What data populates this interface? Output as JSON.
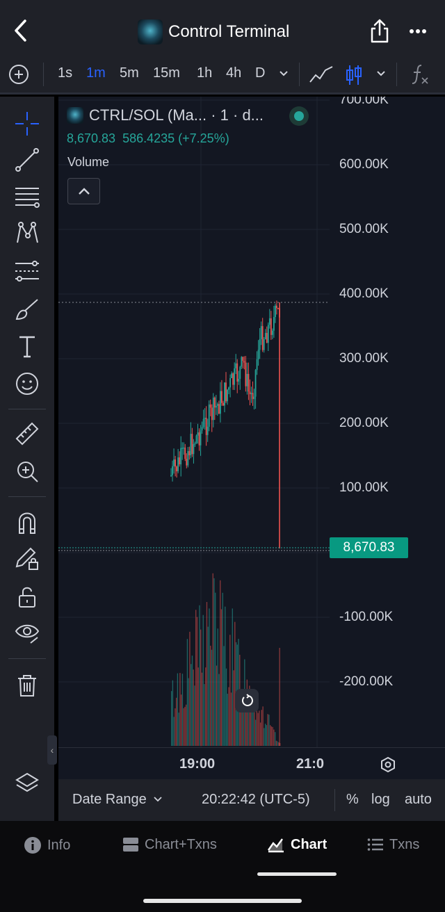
{
  "header": {
    "title": "Control Terminal"
  },
  "toolbar": {
    "timeframes": [
      "1s",
      "1m",
      "5m",
      "15m",
      "1h",
      "4h",
      "D"
    ],
    "active_timeframe": "1m"
  },
  "legend": {
    "title": "CTRL/SOL (Ma... · 1 · d...",
    "price": "8,670.83",
    "change": "586.4235 (+7.25%)",
    "volume_label": "Volume"
  },
  "y_axis": {
    "labels": [
      "700.00K",
      "600.00K",
      "500.00K",
      "400.00K",
      "300.00K",
      "200.00K",
      "100.00K",
      "-100.00K",
      "-200.00K"
    ],
    "current_price": "8,670.83"
  },
  "x_axis": {
    "labels": [
      "19:00",
      "21:0"
    ]
  },
  "statusbar": {
    "date_range": "Date Range",
    "time": "20:22:42 (UTC-5)",
    "percent": "%",
    "log": "log",
    "auto": "auto"
  },
  "bottom_nav": {
    "items": [
      {
        "label": "Info",
        "icon": "info-icon"
      },
      {
        "label": "Chart+Txns",
        "icon": "split-icon"
      },
      {
        "label": "Chart",
        "icon": "chart-icon"
      },
      {
        "label": "Txns",
        "icon": "list-icon"
      }
    ],
    "active": "Chart"
  },
  "colors": {
    "up": "#26a69a",
    "down": "#ef5350",
    "accent": "#2962ff",
    "background": "#131722"
  }
}
